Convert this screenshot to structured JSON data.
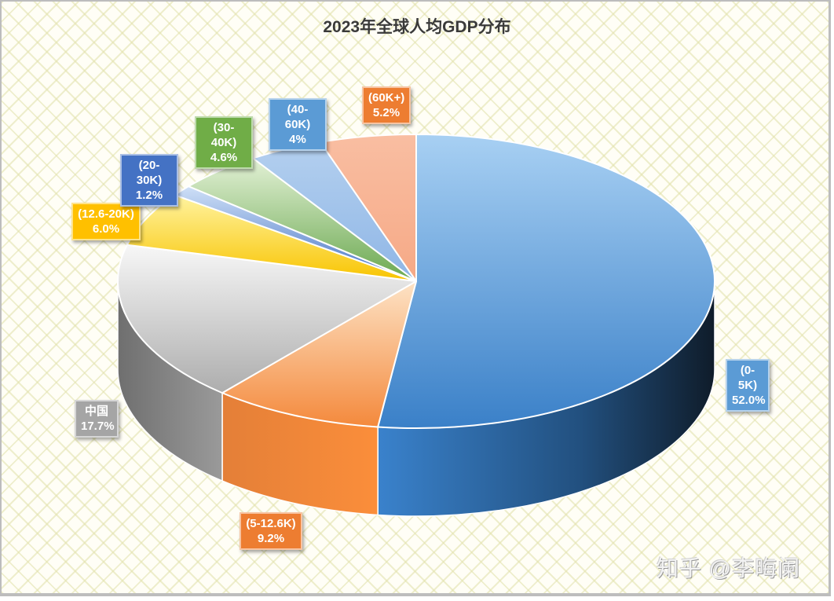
{
  "title": "2023年全球人均GDP分布",
  "watermark": "知乎 @李晦阑",
  "chart_data": {
    "type": "pie",
    "title": "2023年全球人均GDP分布",
    "style": "3d-pie",
    "start_angle_deg": 0,
    "direction": "clockwise",
    "categories": [
      "(0-5K)",
      "(5-12.6K)",
      "中国",
      "(12.6-20K)",
      "(20-30K)",
      "(30-40K)",
      "(40-60K)",
      "(60K+)"
    ],
    "values": [
      52.0,
      9.2,
      17.7,
      6.0,
      1.2,
      4.6,
      4.0,
      5.2
    ],
    "value_labels": [
      "52.0%",
      "9.2%",
      "17.7%",
      "6.0%",
      "1.2%",
      "4.6%",
      "4%",
      "5.2%"
    ],
    "colors": [
      "#3f86cc",
      "#f0873a",
      "#a6a6a6",
      "#f5c000",
      "#4472c4",
      "#6aa84f",
      "#5b9bd5",
      "#e8763a"
    ],
    "legend": "none",
    "data_labels": "category and percent in colored callout boxes"
  },
  "labels": [
    {
      "name": "(0-5K)",
      "pct": "52.0%"
    },
    {
      "name": "(5-12.6K)",
      "pct": "9.2%"
    },
    {
      "name": "中国",
      "pct": "17.7%"
    },
    {
      "name": "(12.6-20K)",
      "pct": "6.0%"
    },
    {
      "name": "(20-30K)",
      "pct": "1.2%"
    },
    {
      "name": "(30-40K)",
      "pct": "4.6%"
    },
    {
      "name": "(40-60K)",
      "pct": "4%"
    },
    {
      "name": "(60K+)",
      "pct": "5.2%"
    }
  ]
}
